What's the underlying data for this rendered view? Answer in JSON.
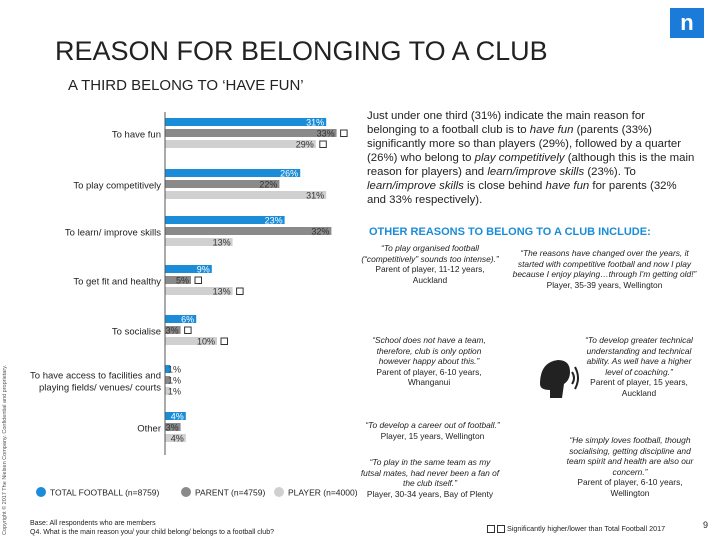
{
  "title": "REASON FOR BELONGING TO A CLUB",
  "subtitle": "A THIRD BELONG TO ‘HAVE FUN’",
  "logo_letter": "n",
  "copyright": "Copyright © 2017 The Nielsen Company. Confidential and proprietary.",
  "colors": {
    "total": "#1a8cd8",
    "parent": "#8a8a8a",
    "player": "#d0d0d0",
    "accent": "#1a8cd8"
  },
  "chart_data": {
    "type": "bar",
    "orientation": "horizontal",
    "categories": [
      "To have fun",
      "To play competitively",
      "To learn/ improve skills",
      "To get fit and healthy",
      "To socialise",
      "To have access to facilities and playing fields/ venues/ courts",
      "Other"
    ],
    "series": [
      {
        "name": "TOTAL FOOTBALL (n=8759)",
        "values": [
          31,
          26,
          23,
          9,
          6,
          1,
          4
        ],
        "labels": [
          "31%",
          "26%",
          "23%",
          "9%",
          "6%",
          "1%",
          "4%"
        ]
      },
      {
        "name": "PARENT (n=4759)",
        "values": [
          33,
          22,
          32,
          5,
          3,
          1,
          3
        ],
        "labels": [
          "33%",
          "22%",
          "32%",
          "5%",
          "3%",
          "1%",
          "3%"
        ]
      },
      {
        "name": "PLAYER (n=4000)",
        "values": [
          29,
          31,
          13,
          13,
          10,
          1,
          4
        ],
        "labels": [
          "29%",
          "31%",
          "13%",
          "13%",
          "10%",
          "1%",
          "4%"
        ]
      }
    ],
    "significance": [
      [
        false,
        true,
        true
      ],
      [
        false,
        false,
        false
      ],
      [
        false,
        false,
        false
      ],
      [
        false,
        true,
        true
      ],
      [
        false,
        true,
        true
      ],
      [
        false,
        false,
        false
      ],
      [
        false,
        false,
        false
      ]
    ],
    "legend_position": "bottom",
    "grid": false
  },
  "description": {
    "p1": "Just under one third (31%) indicate the main reason for belonging to a football club is to ",
    "e1": "have fun",
    "p2": " (parents (33%) significantly more so than players (29%), followed by a quarter (26%) who belong to ",
    "e2": "play competitively",
    "p3": " (although this is the main reason for players) and ",
    "e3": "learn/improve skills",
    "p4": " (23%). To ",
    "e4": "learn/improve skills",
    "p5": " is close behind ",
    "e5": "have fun",
    "p6": " for parents (32% and 33% respectively)."
  },
  "other_heading": "OTHER REASONS TO BELONG TO A CLUB INCLUDE:",
  "quotes": [
    {
      "q": "“To play organised football (“competitively” sounds too intense).”",
      "a": "Parent of player, 11-12 years, Auckland"
    },
    {
      "q": "“The reasons have changed over the years, it started with competitive football and now I play because I enjoy playing…through I'm getting old!”",
      "a": "Player, 35-39 years, Wellington"
    },
    {
      "q": "“School does not have a team, therefore, club is only option however happy about this.”",
      "a": "Parent of player, 6-10 years, Whanganui"
    },
    {
      "q": "“To develop greater technical understanding and technical ability. As well have a higher level of coaching.”",
      "a": "Parent of player, 15 years, Auckland"
    },
    {
      "q": "“To develop a career out of football.”",
      "a": "Player, 15 years, Wellington"
    },
    {
      "q": "“To play in the same team as my futsal mates, had never been a fan of the club itself.”",
      "a": "Player, 30-34 years, Bay of Plenty"
    },
    {
      "q": "“He simply loves football, though socialising, getting discipline and team spirit and health are also our concern.”",
      "a": "Parent of player, 6-10 years, Wellington"
    }
  ],
  "footnote": {
    "base": "Base: All respondents who are members",
    "question": "Q4. What is the main reason you/ your child belong/ belongs to a football club?"
  },
  "sig_note": "Significantly higher/lower than Total Football 2017",
  "page_number": "9",
  "speaker_icon": "speaker-sound-icon"
}
